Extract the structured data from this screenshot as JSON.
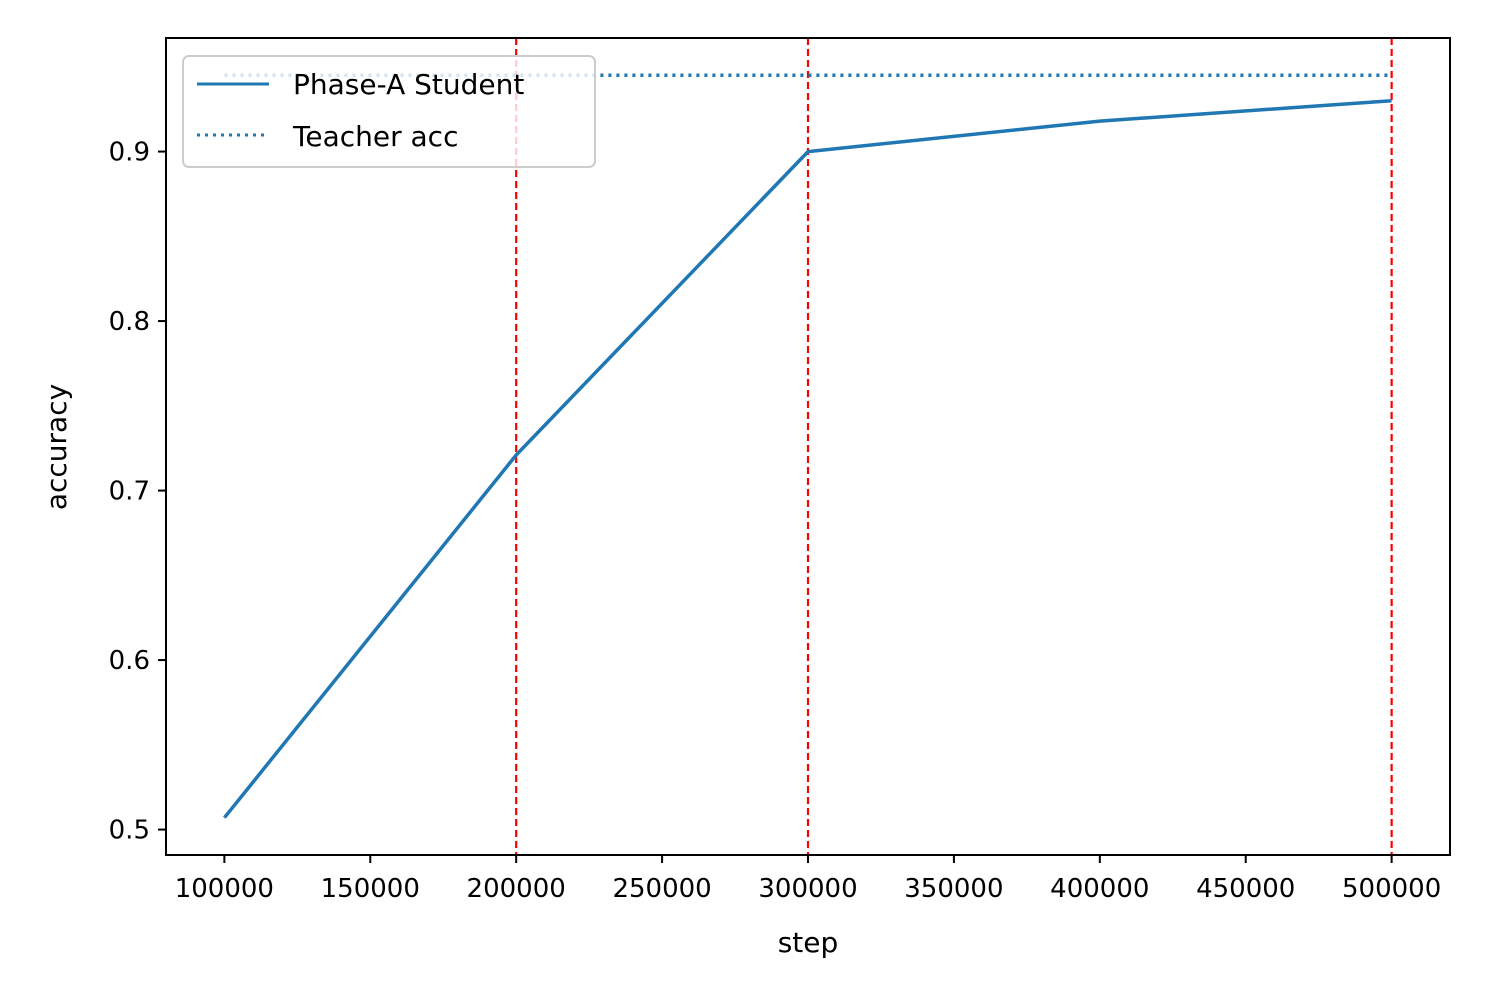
{
  "chart_data": {
    "type": "line",
    "title": "",
    "xlabel": "step",
    "ylabel": "accuracy",
    "xlim": [
      80000,
      520000
    ],
    "ylim": [
      0.485,
      0.967
    ],
    "x_ticks": [
      100000,
      150000,
      200000,
      250000,
      300000,
      350000,
      400000,
      450000,
      500000
    ],
    "x_tick_labels": [
      "100000",
      "150000",
      "200000",
      "250000",
      "300000",
      "350000",
      "400000",
      "450000",
      "500000"
    ],
    "y_ticks": [
      0.5,
      0.6,
      0.7,
      0.8,
      0.9
    ],
    "y_tick_labels": [
      "0.5",
      "0.6",
      "0.7",
      "0.8",
      "0.9"
    ],
    "grid": false,
    "legend_position": "upper-left",
    "series": [
      {
        "name": "Phase-A Student",
        "style": "solid",
        "color": "#1f77b4",
        "x": [
          100000,
          200000,
          300000,
          400000,
          500000
        ],
        "y": [
          0.507,
          0.721,
          0.9,
          0.918,
          0.93
        ]
      },
      {
        "name": "Teacher acc",
        "style": "dotted",
        "color": "#1f77b4",
        "x": [
          100000,
          500000
        ],
        "y": [
          0.945,
          0.945
        ]
      }
    ],
    "vertical_lines": {
      "style": "dashed",
      "color": "#ff0000",
      "x": [
        200000,
        300000,
        500000
      ]
    }
  }
}
